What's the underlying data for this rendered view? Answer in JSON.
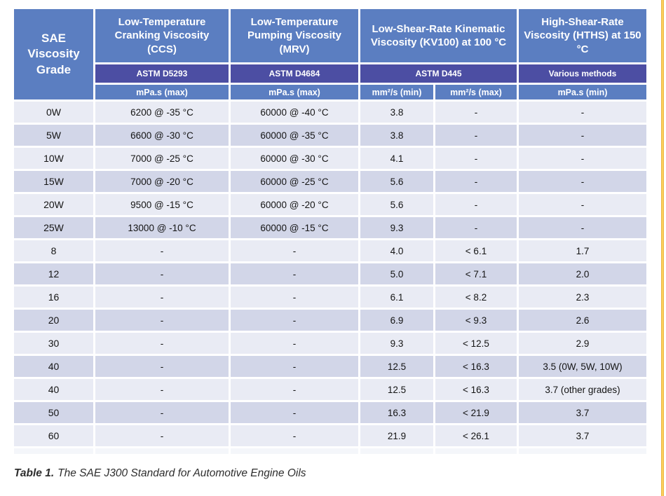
{
  "colors": {
    "header_blue": "#5b7ec1",
    "astm_purple": "#4c4ea3",
    "row_light": "#e9ebf4",
    "row_dark": "#d2d6e8",
    "accent_gold": "#f0b42c"
  },
  "table": {
    "corner_header": "SAE Viscosity Grade",
    "col_groups": [
      {
        "title": "Low-Temperature Cranking Viscosity (CCS)",
        "method": "ASTM D5293",
        "units": [
          "mPa.s (max)"
        ]
      },
      {
        "title": "Low-Temperature Pumping Viscosity (MRV)",
        "method": "ASTM D4684",
        "units": [
          "mPa.s (max)"
        ]
      },
      {
        "title": "Low-Shear-Rate Kinematic Viscosity (KV100) at 100 °C",
        "method": "ASTM D445",
        "units": [
          "mm²/s (min)",
          "mm²/s (max)"
        ]
      },
      {
        "title": "High-Shear-Rate Viscosity (HTHS) at 150 °C",
        "method": "Various methods",
        "units": [
          "mPa.s (min)"
        ]
      }
    ],
    "rows": [
      [
        "0W",
        "6200 @ -35 °C",
        "60000 @ -40 °C",
        "3.8",
        "-",
        "-"
      ],
      [
        "5W",
        "6600 @ -30 °C",
        "60000 @ -35 °C",
        "3.8",
        "-",
        "-"
      ],
      [
        "10W",
        "7000 @ -25 °C",
        "60000 @ -30 °C",
        "4.1",
        "-",
        "-"
      ],
      [
        "15W",
        "7000 @ -20 °C",
        "60000 @ -25 °C",
        "5.6",
        "-",
        "-"
      ],
      [
        "20W",
        "9500 @ -15 °C",
        "60000 @ -20 °C",
        "5.6",
        "-",
        "-"
      ],
      [
        "25W",
        "13000 @ -10 °C",
        "60000 @ -15 °C",
        "9.3",
        "-",
        "-"
      ],
      [
        "8",
        "-",
        "-",
        "4.0",
        "< 6.1",
        "1.7"
      ],
      [
        "12",
        "-",
        "-",
        "5.0",
        "< 7.1",
        "2.0"
      ],
      [
        "16",
        "-",
        "-",
        "6.1",
        "< 8.2",
        "2.3"
      ],
      [
        "20",
        "-",
        "-",
        "6.9",
        "< 9.3",
        "2.6"
      ],
      [
        "30",
        "-",
        "-",
        "9.3",
        "< 12.5",
        "2.9"
      ],
      [
        "40",
        "-",
        "-",
        "12.5",
        "< 16.3",
        "3.5 (0W, 5W, 10W)"
      ],
      [
        "40",
        "-",
        "-",
        "12.5",
        "< 16.3",
        "3.7 (other grades)"
      ],
      [
        "50",
        "-",
        "-",
        "16.3",
        "< 21.9",
        "3.7"
      ],
      [
        "60",
        "-",
        "-",
        "21.9",
        "< 26.1",
        "3.7"
      ]
    ]
  },
  "caption": {
    "label": "Table 1.",
    "text": "The SAE J300 Standard for Automotive Engine Oils"
  }
}
